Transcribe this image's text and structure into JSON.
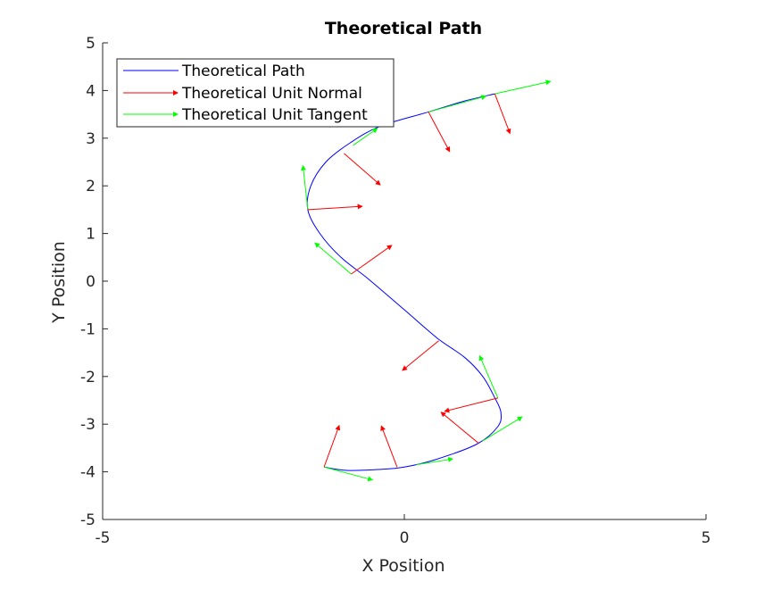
{
  "chart_data": {
    "type": "line",
    "title": "Theoretical Path",
    "xlabel": "X Position",
    "ylabel": "Y Position",
    "xlim": [
      -5,
      5
    ],
    "ylim": [
      -5,
      5
    ],
    "xticks": [
      "-5",
      "0",
      "5"
    ],
    "yticks": [
      "-5",
      "-4",
      "-3",
      "-2",
      "-1",
      "0",
      "1",
      "2",
      "3",
      "4",
      "5"
    ],
    "grid": false,
    "legend_position": "top-left",
    "legend": [
      {
        "label": "Theoretical Path",
        "color": "#0000ff",
        "kind": "line"
      },
      {
        "label": "Theoretical Unit Normal",
        "color": "#ff0000",
        "kind": "arrow"
      },
      {
        "label": "Theoretical Unit Tangent",
        "color": "#00ff00",
        "kind": "arrow"
      }
    ],
    "path": {
      "name": "Theoretical Path",
      "color": "#0000ff",
      "x": [
        -1.33,
        -0.95,
        -0.4,
        0.0,
        0.5,
        1.2,
        1.55,
        1.6,
        1.5,
        1.3,
        1.0,
        0.55,
        0.0,
        -0.6,
        -1.05,
        -1.4,
        -1.6,
        -1.55,
        -1.3,
        -0.9,
        -0.4,
        0.4,
        1.0,
        1.5
      ],
      "y": [
        -3.9,
        -3.97,
        -3.95,
        -3.9,
        -3.75,
        -3.42,
        -3.05,
        -2.75,
        -2.45,
        -2.0,
        -1.6,
        -1.2,
        -0.6,
        0.05,
        0.5,
        1.0,
        1.5,
        2.0,
        2.5,
        2.9,
        3.25,
        3.55,
        3.78,
        3.93
      ]
    },
    "normals": {
      "name": "Theoretical Unit Normal",
      "color": "#ff0000",
      "vectors": [
        {
          "x": -1.33,
          "y": -3.9,
          "u": 0.25,
          "v": 0.87
        },
        {
          "x": -0.12,
          "y": -3.9,
          "u": -0.26,
          "v": 0.86
        },
        {
          "x": 1.23,
          "y": -3.4,
          "u": -0.62,
          "v": 0.65
        },
        {
          "x": 1.55,
          "y": -2.45,
          "u": -0.88,
          "v": -0.28
        },
        {
          "x": 0.57,
          "y": -1.25,
          "u": -0.6,
          "v": -0.62
        },
        {
          "x": -0.88,
          "y": 0.15,
          "u": 0.67,
          "v": 0.6
        },
        {
          "x": -1.6,
          "y": 1.5,
          "u": 0.9,
          "v": 0.07
        },
        {
          "x": -1.0,
          "y": 2.68,
          "u": 0.6,
          "v": -0.66
        },
        {
          "x": 0.4,
          "y": 3.55,
          "u": 0.35,
          "v": -0.83
        },
        {
          "x": 1.5,
          "y": 3.93,
          "u": 0.25,
          "v": -0.83
        }
      ]
    },
    "tangents": {
      "name": "Theoretical Unit Tangent",
      "color": "#00ff00",
      "vectors": [
        {
          "x": -1.33,
          "y": -3.9,
          "u": 0.8,
          "v": -0.27
        },
        {
          "x": 0.2,
          "y": -3.85,
          "u": 0.6,
          "v": 0.12
        },
        {
          "x": 1.3,
          "y": -3.35,
          "u": 0.65,
          "v": 0.5
        },
        {
          "x": 1.55,
          "y": -2.45,
          "u": -0.3,
          "v": 0.88
        },
        {
          "x": -0.88,
          "y": 0.15,
          "u": -0.6,
          "v": 0.65
        },
        {
          "x": -1.6,
          "y": 1.5,
          "u": -0.08,
          "v": 0.92
        },
        {
          "x": -0.85,
          "y": 2.85,
          "u": 0.4,
          "v": 0.35
        },
        {
          "x": 0.4,
          "y": 3.55,
          "u": 0.95,
          "v": 0.33
        },
        {
          "x": 1.5,
          "y": 3.93,
          "u": 0.92,
          "v": 0.26
        }
      ]
    }
  }
}
